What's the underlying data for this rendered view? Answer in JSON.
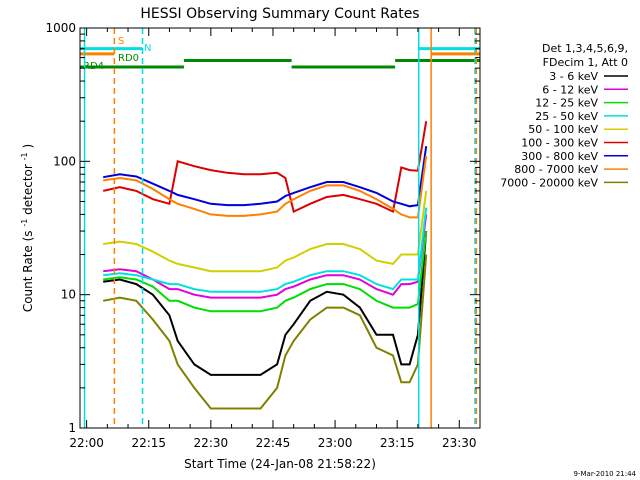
{
  "chart_data": {
    "type": "line",
    "title": "HESSI Observing Summary Count Rates",
    "xlabel": "Start Time (24-Jan-08 21:58:22)",
    "ylabel_main": "Count Rate (s",
    "ylabel_sup1": "-1",
    "ylabel_mid": " detector",
    "ylabel_sup2": "-1",
    "ylabel_end": ")",
    "x_ticks": [
      "22:00",
      "22:15",
      "22:30",
      "22:45",
      "23:00",
      "23:15",
      "23:30"
    ],
    "x_tick_minutes": [
      0,
      15,
      30,
      45,
      60,
      75,
      90
    ],
    "xlim_minutes_after_22_00": [
      -1.6,
      95
    ],
    "y_scale": "log",
    "y_ticks": [
      "1",
      "10",
      "100",
      "1000"
    ],
    "ylim": [
      1,
      1000
    ],
    "footer": "9-Mar-2010 21:44",
    "legend_header": [
      "Det 1,3,4,5,6,9,",
      "FDecim 1, Att 0"
    ],
    "series": [
      {
        "name": "3 - 6 keV",
        "color": "#000000",
        "x": [
          4,
          8,
          12,
          16,
          20,
          22,
          26,
          30,
          34,
          38,
          42,
          46,
          48,
          50,
          54,
          58,
          62,
          66,
          70,
          74,
          76,
          78,
          80,
          82
        ],
        "y": [
          12.5,
          13,
          12,
          10,
          7,
          4.5,
          3,
          2.5,
          2.5,
          2.5,
          2.5,
          3,
          5,
          6,
          9,
          10.5,
          10,
          8,
          5,
          5,
          3,
          3,
          5,
          30
        ]
      },
      {
        "name": "6 - 12 keV",
        "color": "#e000e0",
        "x": [
          4,
          8,
          12,
          16,
          20,
          22,
          26,
          30,
          34,
          38,
          42,
          46,
          48,
          50,
          54,
          58,
          62,
          66,
          70,
          74,
          76,
          78,
          80,
          82
        ],
        "y": [
          15,
          15.5,
          15,
          13,
          11,
          11,
          10,
          9.5,
          9.5,
          9.5,
          9.5,
          10,
          11,
          11.5,
          13,
          14,
          14,
          13,
          11,
          10,
          12,
          12,
          12.5,
          40
        ]
      },
      {
        "name": "12 - 25 keV",
        "color": "#00dd00",
        "x": [
          4,
          8,
          12,
          16,
          20,
          22,
          26,
          30,
          34,
          38,
          42,
          46,
          48,
          50,
          54,
          58,
          62,
          66,
          70,
          74,
          76,
          78,
          80,
          82
        ],
        "y": [
          13,
          13.5,
          13,
          11.5,
          9,
          9,
          8,
          7.5,
          7.5,
          7.5,
          7.5,
          8,
          9,
          9.5,
          11,
          12,
          12,
          11,
          9,
          8,
          8,
          8,
          8.5,
          30
        ]
      },
      {
        "name": "25 - 50 keV",
        "color": "#00e0e0",
        "x": [
          4,
          8,
          12,
          16,
          20,
          22,
          26,
          30,
          34,
          38,
          42,
          46,
          48,
          50,
          54,
          58,
          62,
          66,
          70,
          74,
          76,
          78,
          80,
          82
        ],
        "y": [
          14,
          14.5,
          14,
          13,
          12,
          12,
          11,
          10.5,
          10.5,
          10.5,
          10.5,
          11,
          12,
          12.5,
          14,
          15,
          15,
          14,
          12,
          11,
          13,
          13,
          13,
          45
        ]
      },
      {
        "name": "50 - 100 keV",
        "color": "#d0d000",
        "x": [
          4,
          8,
          12,
          16,
          20,
          22,
          26,
          30,
          34,
          38,
          42,
          46,
          48,
          50,
          54,
          58,
          62,
          66,
          70,
          74,
          76,
          78,
          80,
          82
        ],
        "y": [
          24,
          25,
          24,
          21,
          18,
          17,
          16,
          15,
          15,
          15,
          15,
          16,
          18,
          19,
          22,
          24,
          24,
          22,
          18,
          17,
          20,
          20,
          20,
          60
        ]
      },
      {
        "name": "100 - 300 keV",
        "color": "#dd0000",
        "x": [
          4,
          8,
          12,
          16,
          20,
          22,
          26,
          30,
          34,
          38,
          42,
          46,
          48,
          50,
          54,
          58,
          62,
          66,
          70,
          74,
          76,
          78,
          80,
          82
        ],
        "y": [
          60,
          64,
          60,
          52,
          48,
          100,
          92,
          86,
          82,
          80,
          80,
          82,
          75,
          42,
          48,
          54,
          56,
          52,
          48,
          42,
          90,
          86,
          85,
          200
        ]
      },
      {
        "name": "300 - 800 keV",
        "color": "#0000dd",
        "x": [
          4,
          8,
          12,
          16,
          20,
          22,
          26,
          30,
          34,
          38,
          42,
          46,
          48,
          50,
          54,
          58,
          62,
          66,
          70,
          74,
          76,
          78,
          80,
          82
        ],
        "y": [
          76,
          80,
          77,
          68,
          60,
          56,
          52,
          48,
          47,
          47,
          48,
          50,
          55,
          58,
          64,
          70,
          70,
          64,
          58,
          50,
          48,
          46,
          47,
          130
        ]
      },
      {
        "name": "800 - 7000 keV",
        "color": "#ff8000",
        "x": [
          4,
          8,
          12,
          16,
          20,
          22,
          26,
          30,
          34,
          38,
          42,
          46,
          48,
          50,
          54,
          58,
          62,
          66,
          70,
          74,
          76,
          78,
          80,
          82
        ],
        "y": [
          72,
          75,
          72,
          62,
          52,
          48,
          44,
          40,
          39,
          39,
          40,
          42,
          48,
          52,
          60,
          66,
          66,
          60,
          52,
          44,
          40,
          38,
          38,
          110
        ]
      },
      {
        "name": "7000 - 20000 keV",
        "color": "#808000",
        "x": [
          4,
          8,
          12,
          16,
          20,
          22,
          26,
          30,
          34,
          38,
          42,
          46,
          48,
          50,
          54,
          58,
          62,
          66,
          70,
          74,
          76,
          78,
          80,
          82
        ],
        "y": [
          9,
          9.5,
          9,
          6.5,
          4.5,
          3,
          2,
          1.4,
          1.4,
          1.4,
          1.4,
          2,
          3.5,
          4.5,
          6.5,
          8,
          8,
          7,
          4,
          3.5,
          2.2,
          2.2,
          3,
          20
        ]
      }
    ],
    "vertical_lines": [
      {
        "x": -0.5,
        "color": "#00e0e0",
        "style": "solid"
      },
      {
        "x": 6.7,
        "color": "#ff8000",
        "style": "dashed"
      },
      {
        "x": 13.5,
        "color": "#00e0e0",
        "style": "dashed"
      },
      {
        "x": 80.2,
        "color": "#00e0e0",
        "style": "solid"
      },
      {
        "x": 83.2,
        "color": "#ff8000",
        "style": "solid"
      },
      {
        "x": 93.8,
        "color": "#00e0e0",
        "style": "dashed"
      },
      {
        "x": 94.1,
        "color": "#ff8000",
        "style": "dashed"
      }
    ],
    "flag_bars": [
      {
        "label": "S",
        "color": "#ff8000",
        "y": 640,
        "segments": [
          [
            -1.6,
            6.7
          ],
          [
            83.2,
            95
          ]
        ]
      },
      {
        "label": "N",
        "color": "#00e0e0",
        "y": 700,
        "segments": [
          [
            -1.6,
            13.5
          ],
          [
            80.2,
            95
          ]
        ]
      },
      {
        "label": "RD0",
        "color": "#008800",
        "y": 570,
        "segments": [
          [
            23.5,
            49.5
          ],
          [
            74.5,
            95
          ]
        ]
      },
      {
        "label": "RD4",
        "color": "#008800",
        "y": 510,
        "segments": [
          [
            -1.6,
            23.5
          ],
          [
            49.5,
            74.5
          ]
        ]
      }
    ]
  }
}
